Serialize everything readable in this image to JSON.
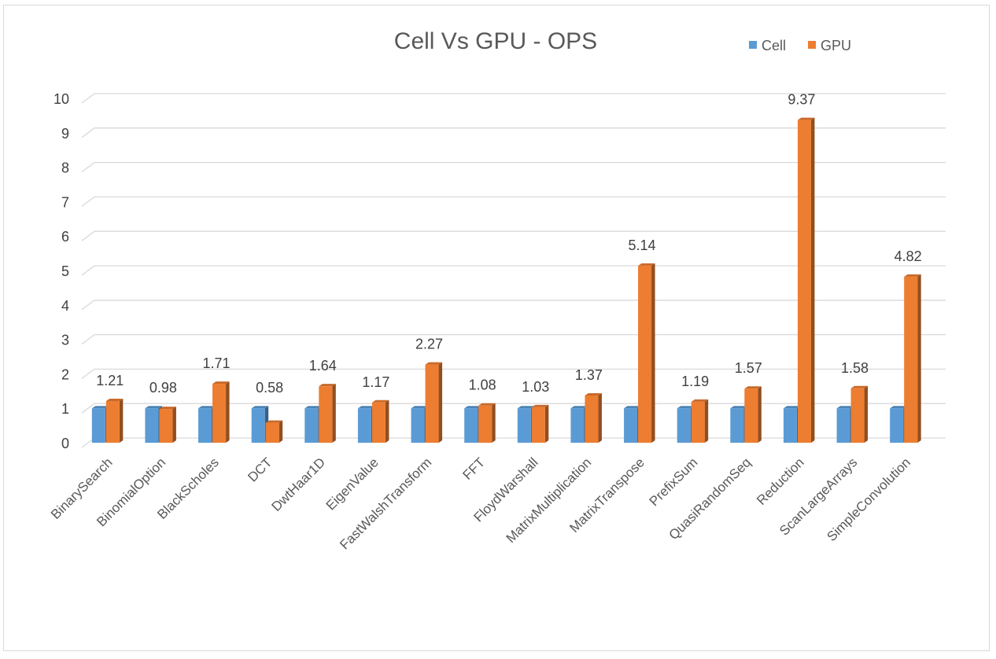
{
  "chart_data": {
    "type": "bar",
    "title": "Cell Vs GPU - OPS",
    "categories": [
      "BinarySearch",
      "BinomialOption",
      "BlackScholes",
      "DCT",
      "DwtHaar1D",
      "EigenValue",
      "FastWalshTransform",
      "FFT",
      "FloydWarshall",
      "MatrixMultiplication",
      "MatrixTranspose",
      "PrefixSum",
      "QuasiRandomSeq",
      "Reduction",
      "ScanLargeArrays",
      "SimpleConvolution"
    ],
    "series": [
      {
        "name": "Cell",
        "color": "#5b9bd5",
        "values": [
          1,
          1,
          1,
          1,
          1,
          1,
          1,
          1,
          1,
          1,
          1,
          1,
          1,
          1,
          1,
          1
        ]
      },
      {
        "name": "GPU",
        "color": "#ed7d31",
        "values": [
          1.21,
          0.98,
          1.71,
          0.58,
          1.64,
          1.17,
          2.27,
          1.08,
          1.03,
          1.37,
          5.14,
          1.19,
          1.57,
          9.37,
          1.58,
          4.82
        ]
      }
    ],
    "data_labels": [
      "1.21",
      "0.98",
      "1.71",
      "0.58",
      "1.64",
      "1.17",
      "2.27",
      "1.08",
      "1.03",
      "1.37",
      "5.14",
      "1.19",
      "1.57",
      "9.37",
      "1.58",
      "4.82"
    ],
    "ylim": [
      0,
      10
    ],
    "yticks": [
      "0",
      "1",
      "2",
      "3",
      "4",
      "5",
      "6",
      "7",
      "8",
      "9",
      "10"
    ],
    "grid": true,
    "legend_position": "top-right",
    "style": "3d-clustered-column"
  }
}
